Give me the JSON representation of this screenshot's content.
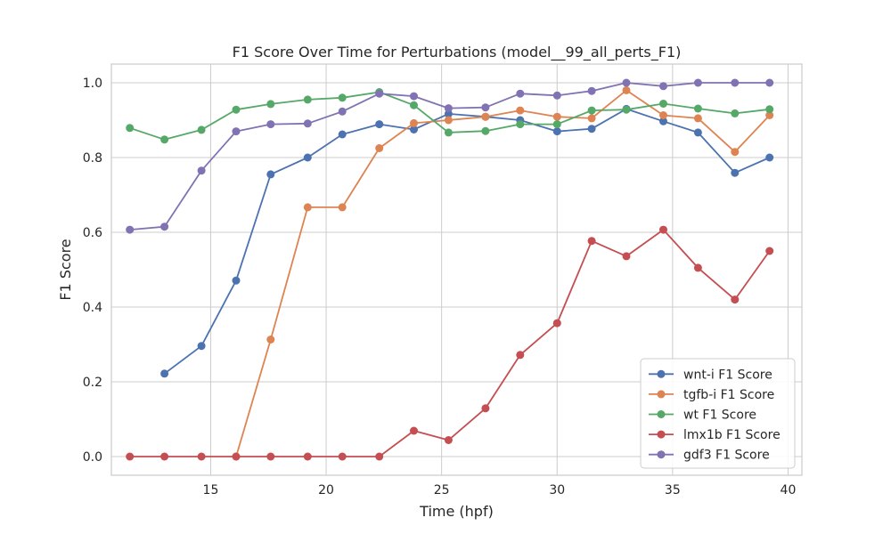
{
  "chart_data": {
    "type": "line",
    "title": "F1 Score Over Time for Perturbations (model__99_all_perts_F1)",
    "xlabel": "Time (hpf)",
    "ylabel": "F1 Score",
    "xlim": [
      10.7,
      40.6
    ],
    "ylim": [
      -0.05,
      1.05
    ],
    "xticks": [
      15,
      20,
      25,
      30,
      35,
      40
    ],
    "yticks": [
      0.0,
      0.2,
      0.4,
      0.6,
      0.8,
      1.0
    ],
    "grid": true,
    "legend_position": "lower-right",
    "x": [
      11.5,
      13.0,
      14.6,
      16.1,
      17.6,
      19.2,
      20.7,
      22.3,
      23.8,
      25.3,
      26.9,
      28.4,
      30.0,
      31.5,
      33.0,
      34.6,
      36.1,
      37.7,
      39.2
    ],
    "series": [
      {
        "name": "wnt-i F1 Score",
        "color": "#4c72b0",
        "values": [
          null,
          0.222,
          0.296,
          0.471,
          0.755,
          0.8,
          0.862,
          0.889,
          0.875,
          0.917,
          0.909,
          0.9,
          0.87,
          0.877,
          0.93,
          0.897,
          0.867,
          0.759,
          0.8
        ]
      },
      {
        "name": "tgfb-i F1 Score",
        "color": "#dd8452",
        "values": [
          null,
          null,
          null,
          0.0,
          0.313,
          0.667,
          0.667,
          0.825,
          0.892,
          0.9,
          0.909,
          0.926,
          0.909,
          0.905,
          0.98,
          0.913,
          0.905,
          0.815,
          0.913
        ]
      },
      {
        "name": "wt F1 Score",
        "color": "#55a868",
        "values": [
          0.879,
          0.848,
          0.874,
          0.928,
          0.943,
          0.955,
          0.96,
          0.975,
          0.94,
          0.867,
          0.871,
          0.889,
          0.889,
          0.926,
          0.928,
          0.944,
          0.931,
          0.918,
          0.929
        ]
      },
      {
        "name": "lmx1b F1 Score",
        "color": "#c44e52",
        "values": [
          0.0,
          0.0,
          0.0,
          0.0,
          0.0,
          0.0,
          0.0,
          0.0,
          0.069,
          0.044,
          0.129,
          0.272,
          0.357,
          0.577,
          0.536,
          0.607,
          0.505,
          0.42,
          0.55
        ]
      },
      {
        "name": "gdf3 F1 Score",
        "color": "#8172b3",
        "values": [
          0.607,
          0.615,
          0.765,
          0.87,
          0.889,
          0.891,
          0.923,
          0.971,
          0.964,
          0.932,
          0.934,
          0.971,
          0.966,
          0.978,
          1.0,
          0.991,
          1.0,
          1.0,
          1.0
        ]
      }
    ]
  }
}
